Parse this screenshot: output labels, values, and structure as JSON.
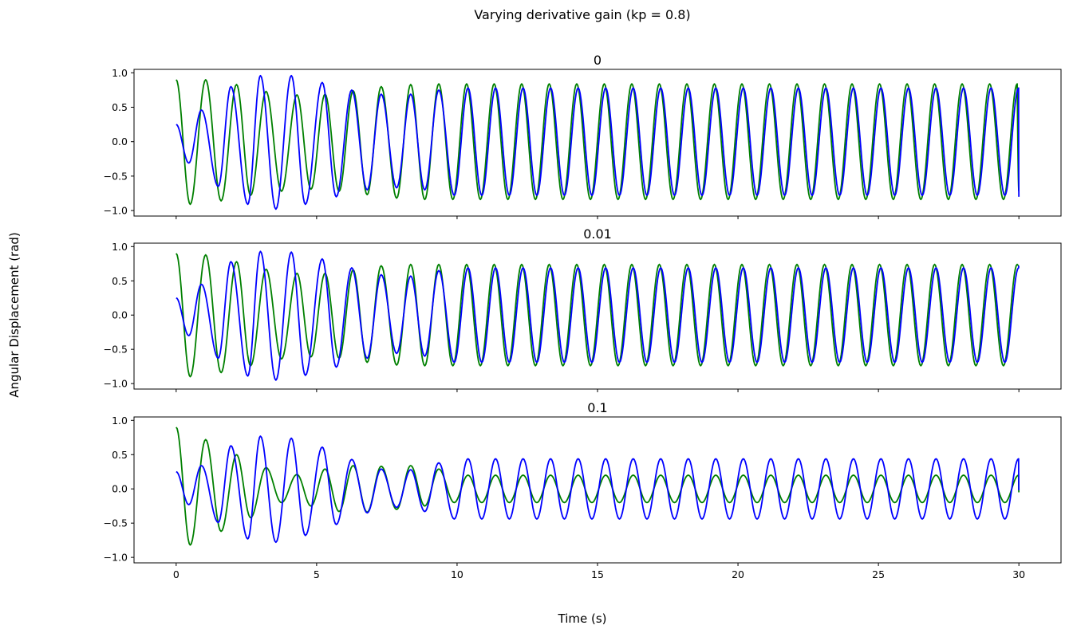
{
  "figure": {
    "suptitle": "Varying derivative gain (kp = 0.8)",
    "xlabel": "Time (s)",
    "ylabel": "Angular Displacement (rad)"
  },
  "colors": {
    "series_green": "#008000",
    "series_blue": "#0000ff",
    "axes": "#000000",
    "background": "#ffffff"
  },
  "chart_data": [
    {
      "type": "line",
      "title": "0",
      "xlim": [
        -1.5,
        31.5
      ],
      "ylim": [
        -1.08,
        1.05
      ],
      "xticks": [
        0,
        5,
        10,
        15,
        20,
        25,
        30
      ],
      "xtick_labels_visible": false,
      "yticks": [
        -1.0,
        -0.5,
        0.0,
        0.5,
        1.0
      ],
      "ytick_labels": [
        "−1.0",
        "−0.5",
        "0.0",
        "0.5",
        "1.0"
      ],
      "grid": false,
      "t_range": [
        0,
        30
      ],
      "series": [
        {
          "color": "#008000",
          "description": "green trace: starts at 0.9, early beating then steady oscillation ~0.85 amplitude, period ~0.98 s",
          "peaks": [
            {
              "t": 0.0,
              "v": 0.9
            },
            {
              "t": 0.5,
              "v": -0.91
            },
            {
              "t": 1.05,
              "v": 0.9
            },
            {
              "t": 1.6,
              "v": -0.86
            },
            {
              "t": 2.15,
              "v": 0.83
            },
            {
              "t": 2.65,
              "v": -0.78
            },
            {
              "t": 3.2,
              "v": 0.73
            },
            {
              "t": 3.75,
              "v": -0.72
            },
            {
              "t": 4.3,
              "v": 0.68
            },
            {
              "t": 4.8,
              "v": -0.69
            },
            {
              "t": 5.3,
              "v": 0.69
            },
            {
              "t": 5.8,
              "v": -0.72
            },
            {
              "t": 6.3,
              "v": 0.74
            },
            {
              "t": 6.8,
              "v": -0.77
            },
            {
              "t": 7.3,
              "v": 0.8
            },
            {
              "t": 7.85,
              "v": -0.82
            },
            {
              "t": 8.35,
              "v": 0.83
            },
            {
              "t": 8.85,
              "v": -0.84
            },
            {
              "t": 9.35,
              "v": 0.84
            },
            {
              "t": 9.85,
              "v": -0.84
            },
            {
              "t": 30.0,
              "v": -0.72
            }
          ]
        },
        {
          "color": "#0000ff",
          "description": "blue trace: starts at 0.25, grows to ~0.96 by t≈3-4 s, then settles to steady oscillation ~0.84 amplitude",
          "peaks": [
            {
              "t": 0.0,
              "v": 0.25
            },
            {
              "t": 0.45,
              "v": -0.31
            },
            {
              "t": 0.9,
              "v": 0.46
            },
            {
              "t": 1.5,
              "v": -0.65
            },
            {
              "t": 1.95,
              "v": 0.8
            },
            {
              "t": 2.55,
              "v": -0.91
            },
            {
              "t": 3.0,
              "v": 0.96
            },
            {
              "t": 3.55,
              "v": -0.98
            },
            {
              "t": 4.1,
              "v": 0.96
            },
            {
              "t": 4.6,
              "v": -0.91
            },
            {
              "t": 5.2,
              "v": 0.86
            },
            {
              "t": 5.7,
              "v": -0.8
            },
            {
              "t": 6.25,
              "v": 0.75
            },
            {
              "t": 6.8,
              "v": -0.7
            },
            {
              "t": 7.3,
              "v": 0.69
            },
            {
              "t": 7.85,
              "v": -0.67
            },
            {
              "t": 8.35,
              "v": 0.69
            },
            {
              "t": 8.85,
              "v": -0.7
            },
            {
              "t": 9.35,
              "v": 0.75
            },
            {
              "t": 9.9,
              "v": -0.78
            },
            {
              "t": 30.0,
              "v": -0.8
            }
          ]
        }
      ]
    },
    {
      "type": "line",
      "title": "0.01",
      "xlim": [
        -1.5,
        31.5
      ],
      "ylim": [
        -1.08,
        1.05
      ],
      "xticks": [
        0,
        5,
        10,
        15,
        20,
        25,
        30
      ],
      "xtick_labels_visible": false,
      "yticks": [
        -1.0,
        -0.5,
        0.0,
        0.5,
        1.0
      ],
      "ytick_labels": [
        "−1.0",
        "−0.5",
        "0.0",
        "0.5",
        "1.0"
      ],
      "grid": false,
      "t_range": [
        0,
        30
      ],
      "series": [
        {
          "color": "#008000",
          "description": "green trace: starts at 0.9, settles to steady oscillation ~0.73 amplitude",
          "peaks": [
            {
              "t": 0.0,
              "v": 0.9
            },
            {
              "t": 0.5,
              "v": -0.9
            },
            {
              "t": 1.05,
              "v": 0.88
            },
            {
              "t": 1.6,
              "v": -0.84
            },
            {
              "t": 2.15,
              "v": 0.78
            },
            {
              "t": 2.65,
              "v": -0.74
            },
            {
              "t": 3.2,
              "v": 0.67
            },
            {
              "t": 3.75,
              "v": -0.64
            },
            {
              "t": 4.3,
              "v": 0.61
            },
            {
              "t": 4.8,
              "v": -0.61
            },
            {
              "t": 5.3,
              "v": 0.61
            },
            {
              "t": 5.8,
              "v": -0.63
            },
            {
              "t": 6.3,
              "v": 0.66
            },
            {
              "t": 6.8,
              "v": -0.69
            },
            {
              "t": 7.3,
              "v": 0.72
            },
            {
              "t": 7.85,
              "v": -0.73
            },
            {
              "t": 8.35,
              "v": 0.74
            },
            {
              "t": 8.85,
              "v": -0.74
            },
            {
              "t": 9.35,
              "v": 0.74
            },
            {
              "t": 9.85,
              "v": -0.74
            },
            {
              "t": 30.0,
              "v": 0.72
            }
          ]
        },
        {
          "color": "#0000ff",
          "description": "blue trace: starts at 0.25, grows to ~0.93, then converges onto the green trace at ~0.73 amplitude",
          "peaks": [
            {
              "t": 0.0,
              "v": 0.25
            },
            {
              "t": 0.45,
              "v": -0.3
            },
            {
              "t": 0.9,
              "v": 0.45
            },
            {
              "t": 1.5,
              "v": -0.63
            },
            {
              "t": 1.95,
              "v": 0.78
            },
            {
              "t": 2.55,
              "v": -0.89
            },
            {
              "t": 3.0,
              "v": 0.93
            },
            {
              "t": 3.55,
              "v": -0.95
            },
            {
              "t": 4.1,
              "v": 0.92
            },
            {
              "t": 4.6,
              "v": -0.88
            },
            {
              "t": 5.2,
              "v": 0.82
            },
            {
              "t": 5.7,
              "v": -0.76
            },
            {
              "t": 6.25,
              "v": 0.69
            },
            {
              "t": 6.8,
              "v": -0.63
            },
            {
              "t": 7.3,
              "v": 0.59
            },
            {
              "t": 7.85,
              "v": -0.56
            },
            {
              "t": 8.35,
              "v": 0.57
            },
            {
              "t": 8.85,
              "v": -0.6
            },
            {
              "t": 9.35,
              "v": 0.65
            },
            {
              "t": 9.9,
              "v": -0.69
            },
            {
              "t": 30.0,
              "v": 0.72
            }
          ]
        }
      ]
    },
    {
      "type": "line",
      "title": "0.1",
      "xlim": [
        -1.5,
        31.5
      ],
      "ylim": [
        -1.08,
        1.05
      ],
      "xticks": [
        0,
        5,
        10,
        15,
        20,
        25,
        30
      ],
      "xtick_labels": [
        "0",
        "5",
        "10",
        "15",
        "20",
        "25",
        "30"
      ],
      "yticks": [
        -1.0,
        -0.5,
        0.0,
        0.5,
        1.0
      ],
      "ytick_labels": [
        "−1.0",
        "−0.5",
        "0.0",
        "0.5",
        "1.0"
      ],
      "grid": false,
      "t_range": [
        0,
        30
      ],
      "series": [
        {
          "color": "#008000",
          "description": "green trace: starts at 0.9, decays quickly, then small oscillation ~0.2 amplitude with slow beating",
          "peaks": [
            {
              "t": 0.0,
              "v": 0.9
            },
            {
              "t": 0.5,
              "v": -0.82
            },
            {
              "t": 1.05,
              "v": 0.72
            },
            {
              "t": 1.6,
              "v": -0.62
            },
            {
              "t": 2.15,
              "v": 0.5
            },
            {
              "t": 2.65,
              "v": -0.42
            },
            {
              "t": 3.2,
              "v": 0.31
            },
            {
              "t": 3.75,
              "v": -0.2
            },
            {
              "t": 4.3,
              "v": 0.21
            },
            {
              "t": 4.8,
              "v": -0.25
            },
            {
              "t": 5.3,
              "v": 0.29
            },
            {
              "t": 5.8,
              "v": -0.33
            },
            {
              "t": 6.3,
              "v": 0.34
            },
            {
              "t": 6.8,
              "v": -0.34
            },
            {
              "t": 7.3,
              "v": 0.33
            },
            {
              "t": 7.85,
              "v": -0.3
            },
            {
              "t": 8.35,
              "v": 0.34
            },
            {
              "t": 8.85,
              "v": -0.25
            },
            {
              "t": 9.35,
              "v": 0.29
            },
            {
              "t": 9.9,
              "v": -0.2
            },
            {
              "t": 30.0,
              "v": -0.05
            }
          ]
        },
        {
          "color": "#0000ff",
          "description": "blue trace: starts at 0.25, grows to ~0.77, dips to ~0.45 near t≈8-10 s, then steady ~0.58 amplitude",
          "peaks": [
            {
              "t": 0.0,
              "v": 0.25
            },
            {
              "t": 0.45,
              "v": -0.23
            },
            {
              "t": 0.9,
              "v": 0.34
            },
            {
              "t": 1.5,
              "v": -0.49
            },
            {
              "t": 1.95,
              "v": 0.63
            },
            {
              "t": 2.55,
              "v": -0.73
            },
            {
              "t": 3.0,
              "v": 0.77
            },
            {
              "t": 3.55,
              "v": -0.78
            },
            {
              "t": 4.1,
              "v": 0.74
            },
            {
              "t": 4.6,
              "v": -0.68
            },
            {
              "t": 5.2,
              "v": 0.61
            },
            {
              "t": 5.7,
              "v": -0.52
            },
            {
              "t": 6.25,
              "v": 0.43
            },
            {
              "t": 6.8,
              "v": -0.35
            },
            {
              "t": 7.3,
              "v": 0.29
            },
            {
              "t": 7.85,
              "v": -0.27
            },
            {
              "t": 8.35,
              "v": 0.28
            },
            {
              "t": 8.85,
              "v": -0.33
            },
            {
              "t": 9.35,
              "v": 0.38
            },
            {
              "t": 9.9,
              "v": -0.44
            },
            {
              "t": 30.0,
              "v": -0.02
            }
          ]
        }
      ]
    }
  ]
}
